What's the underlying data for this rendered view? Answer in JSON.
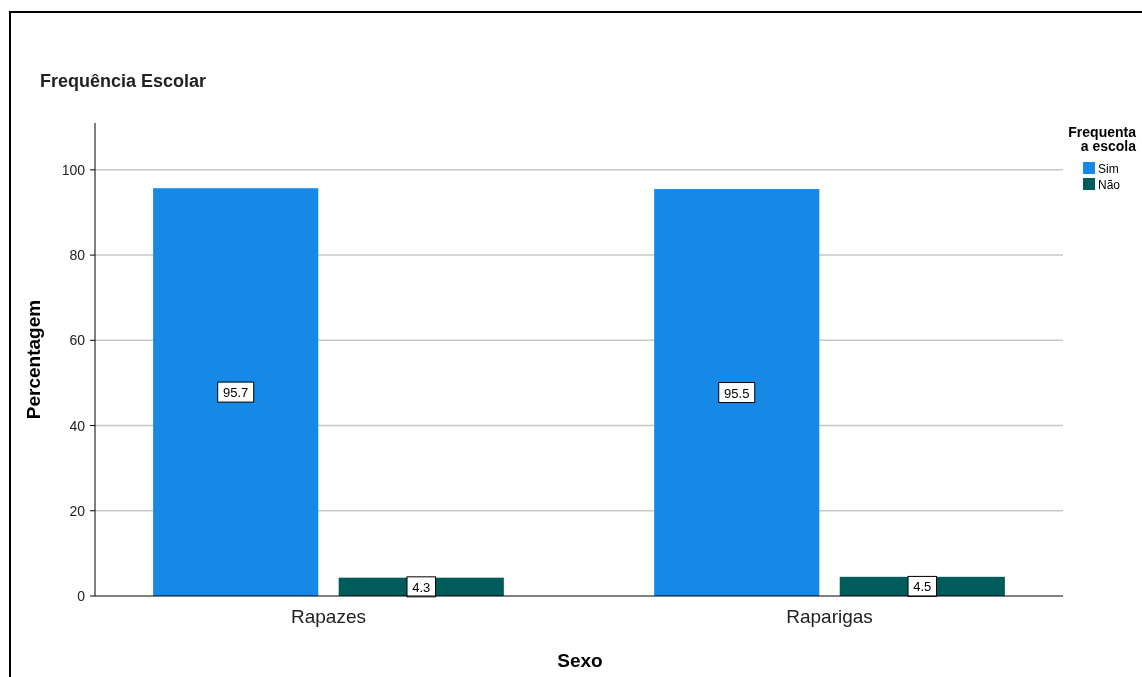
{
  "chart_data": {
    "type": "bar",
    "title": "Frequência Escolar",
    "xlabel": "Sexo",
    "ylabel": "Percentagem",
    "legend_title": "Frequenta a escola",
    "categories": [
      "Rapazes",
      "Raparigas"
    ],
    "series": [
      {
        "name": "Sim",
        "color": "#1689e6",
        "values": [
          95.7,
          95.5
        ]
      },
      {
        "name": "Não",
        "color": "#005c5a",
        "values": [
          4.3,
          4.5
        ]
      }
    ],
    "ylim": [
      0,
      111
    ],
    "yticks": [
      0,
      20,
      40,
      60,
      80,
      100
    ],
    "grid": "y",
    "legend": "top right",
    "data_labels": true
  }
}
